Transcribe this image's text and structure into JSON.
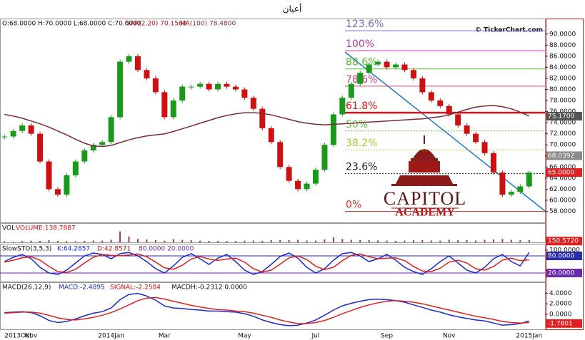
{
  "chart_data": [
    {
      "type": "candlestick",
      "title": "أعيان",
      "legend_text": "O:68.0000 H:70.0000 L:68.0000 C:70.0000",
      "sar_label": "SAR(2,20) 70.1568",
      "watermark": "© TickerChart.com",
      "logo_name": "CAPITOL",
      "logo_sub": "ACADEMY",
      "categories": [
        "2013Oct",
        null,
        null,
        "Nov",
        null,
        null,
        null,
        null,
        null,
        null,
        null,
        null,
        "2014Jan",
        null,
        null,
        null,
        null,
        null,
        "Mar",
        null,
        null,
        null,
        null,
        null,
        null,
        null,
        null,
        "May",
        null,
        null,
        null,
        null,
        null,
        null,
        null,
        "Jul",
        null,
        null,
        null,
        null,
        null,
        null,
        null,
        "Sep",
        null,
        null,
        null,
        null,
        null,
        null,
        "Nov",
        null,
        null,
        null,
        null,
        null,
        null,
        null,
        null,
        "2015Jan"
      ],
      "values": [
        71.5,
        72.5,
        73.5,
        72,
        67,
        62,
        61,
        64.5,
        67,
        69,
        70,
        70.5,
        75,
        85,
        86,
        83.5,
        82,
        79.5,
        75,
        78,
        80.5,
        80.5,
        81,
        80,
        81,
        80.5,
        80,
        78.5,
        76.5,
        73,
        70.5,
        66,
        63.5,
        62,
        63,
        65.5,
        70,
        75.5,
        78.5,
        81,
        83,
        84.5,
        85,
        84,
        84.5,
        83.5,
        82,
        79.5,
        78,
        77,
        75.5,
        73.5,
        72,
        70.5,
        68.5,
        65,
        61,
        61.5,
        62.5,
        65
      ],
      "up_color": "#1a9a1a",
      "down_color": "#d01010",
      "ma": {
        "label": "MA(100) 78.4800",
        "color": "#7a2a3a",
        "values": [
          75.5,
          75.2,
          74.8,
          74.3,
          73.8,
          73.2,
          72.5,
          71.8,
          71,
          70.3,
          69.8,
          69.7,
          69.9,
          70.4,
          70.9,
          71.3,
          71.6,
          71.8,
          72,
          72.4,
          72.9,
          73.4,
          73.9,
          74.4,
          74.9,
          75.3,
          75.6,
          75.8,
          75.8,
          75.7,
          75.4,
          75,
          74.6,
          74.2,
          73.9,
          73.7,
          73.6,
          73.7,
          73.8,
          73.9,
          74,
          74.1,
          74.2,
          74.3,
          74.4,
          74.5,
          74.6,
          74.7,
          74.9,
          75.1,
          75.4,
          75.9,
          76.4,
          76.8,
          77,
          77.1,
          76.9,
          76.5,
          75.9,
          75.2
        ]
      },
      "ylim": [
        56,
        92.8
      ],
      "yticks": [
        {
          "value": 58,
          "label": "58.0000"
        },
        {
          "value": 60,
          "label": "60.0000"
        },
        {
          "value": 62,
          "label": "62.0000"
        },
        {
          "value": 64,
          "label": "64.0000"
        },
        {
          "value": 66,
          "label": "66.0000"
        },
        {
          "value": 68,
          "label": "68.0000"
        },
        {
          "value": 70,
          "label": "70.0000"
        },
        {
          "value": 72,
          "label": "72.0000"
        },
        {
          "value": 74,
          "label": "74.0000"
        },
        {
          "value": 76,
          "label": "76.0000"
        },
        {
          "value": 78,
          "label": "78.0000"
        },
        {
          "value": 80,
          "label": "80.0000"
        },
        {
          "value": 82,
          "label": "82.0000"
        },
        {
          "value": 84,
          "label": "84.0000"
        },
        {
          "value": 86,
          "label": "86.0000"
        },
        {
          "value": 88,
          "label": "88.0000"
        },
        {
          "value": 90,
          "label": "90.0000"
        }
      ],
      "price_tags": [
        {
          "value": 75.17,
          "label": "75.1700",
          "color": "#555555"
        },
        {
          "value": 68.0392,
          "label": "68.0392",
          "color": "#8a8a8a"
        },
        {
          "value": 65,
          "label": "65.0000",
          "color": "#e02020"
        }
      ],
      "fib_levels": [
        {
          "value": 90.6,
          "label": "123.6%",
          "color": "#6a6acf"
        },
        {
          "value": 87,
          "label": "100%",
          "color": "#c030a0"
        },
        {
          "value": 83.7,
          "label": "88.6%",
          "color": "#55bb33"
        },
        {
          "value": 80.6,
          "label": "78.6%",
          "color": "#d04080"
        },
        {
          "value": 75.8,
          "label": "61.8%",
          "color": "#e01010"
        },
        {
          "value": 72.5,
          "label": "50%",
          "color": "#55cc33"
        },
        {
          "value": 69.1,
          "label": "38.2%",
          "color": "#aacc33"
        },
        {
          "value": 64.8,
          "label": "23.6%",
          "color": "#222222"
        },
        {
          "value": 58,
          "label": "0%",
          "color": "#e03030"
        }
      ]
    },
    {
      "type": "bar",
      "name": "VOL",
      "label": "VOLUME:138.7887",
      "color": "#a04040",
      "values": [
        120,
        90,
        150,
        200,
        180,
        250,
        160,
        140,
        130,
        180,
        220,
        200,
        300,
        1300,
        700,
        400,
        350,
        250,
        200,
        380,
        300,
        250,
        200,
        180,
        160,
        150,
        170,
        200,
        220,
        180,
        250,
        280,
        260,
        300,
        220,
        200,
        350,
        600,
        400,
        300,
        280,
        250,
        220,
        200,
        180,
        200,
        240,
        260,
        220,
        200,
        300,
        250,
        280,
        220,
        300,
        350,
        400,
        300,
        250,
        280
      ],
      "ylim": [
        0,
        2200
      ],
      "tag": {
        "value": 150.572,
        "label": "150.5720",
        "color": "#e02020"
      }
    },
    {
      "type": "line",
      "name": "SlowSTO(3,5,3)",
      "levels_label": "80.0000 20.0000",
      "series": [
        {
          "name": "K:64.2857",
          "color": "#1a2ad0",
          "values": [
            60,
            75,
            85,
            70,
            40,
            20,
            15,
            30,
            55,
            80,
            90,
            85,
            70,
            88,
            92,
            80,
            60,
            35,
            20,
            45,
            75,
            88,
            70,
            50,
            72,
            85,
            60,
            30,
            15,
            25,
            50,
            78,
            90,
            72,
            40,
            20,
            35,
            65,
            88,
            92,
            80,
            60,
            70,
            85,
            65,
            40,
            25,
            15,
            35,
            60,
            80,
            55,
            30,
            20,
            40,
            70,
            85,
            60,
            45,
            92
          ]
        },
        {
          "name": "D:42.8571",
          "color": "#e02020",
          "values": [
            58,
            65,
            73,
            77,
            65,
            43,
            25,
            22,
            33,
            55,
            75,
            85,
            82,
            81,
            83,
            87,
            77,
            58,
            38,
            33,
            47,
            69,
            78,
            69,
            64,
            69,
            72,
            58,
            35,
            23,
            30,
            51,
            73,
            80,
            67,
            44,
            32,
            40,
            63,
            82,
            87,
            77,
            70,
            72,
            73,
            63,
            43,
            27,
            25,
            37,
            58,
            65,
            55,
            35,
            30,
            43,
            65,
            72,
            63,
            66
          ]
        }
      ],
      "ylim": [
        -10,
        120
      ],
      "yticks": [
        {
          "value": 100,
          "label": "100.0000"
        }
      ],
      "levels": [
        {
          "value": 80,
          "label": "80.0000",
          "color": "#2a2ab0"
        },
        {
          "value": 20,
          "label": "20.0000",
          "color": "#6a2ab0"
        }
      ]
    },
    {
      "type": "line",
      "name": "MACD(26,12,9)",
      "levels_label": "MACDH:-0.2312 0.0000",
      "series": [
        {
          "name": "MACD:-2.4895",
          "color": "#1a2ad0",
          "values": [
            0.3,
            0.4,
            0.5,
            0.3,
            -0.3,
            -1.2,
            -1.6,
            -1.4,
            -0.9,
            -0.3,
            0.2,
            0.5,
            1.2,
            2.8,
            3.8,
            4.0,
            3.5,
            2.7,
            1.6,
            1.2,
            1.1,
            0.9,
            0.8,
            0.6,
            0.6,
            0.5,
            0.4,
            0.1,
            -0.4,
            -1.1,
            -1.6,
            -2.0,
            -2.2,
            -2.1,
            -1.7,
            -1.1,
            -0.2,
            0.8,
            1.6,
            2.1,
            2.5,
            2.8,
            2.9,
            2.8,
            2.6,
            2.3,
            1.8,
            1.3,
            0.8,
            0.4,
            -0.1,
            -0.5,
            -0.8,
            -1.1,
            -1.3,
            -1.7,
            -2.1,
            -2.0,
            -1.8,
            -1.3
          ]
        },
        {
          "name": "SIGNAL:-2.2584",
          "color": "#e02020",
          "values": [
            0.2,
            0.3,
            0.4,
            0.4,
            0.2,
            -0.2,
            -0.7,
            -1.0,
            -1.1,
            -0.9,
            -0.6,
            -0.2,
            0.3,
            1.0,
            1.8,
            2.6,
            3.1,
            3.2,
            2.9,
            2.5,
            2.1,
            1.7,
            1.4,
            1.1,
            0.9,
            0.8,
            0.6,
            0.5,
            0.2,
            -0.2,
            -0.6,
            -1.1,
            -1.5,
            -1.8,
            -1.8,
            -1.6,
            -1.2,
            -0.6,
            0.1,
            0.7,
            1.3,
            1.8,
            2.2,
            2.5,
            2.6,
            2.5,
            2.3,
            2.0,
            1.6,
            1.2,
            0.8,
            0.4,
            0.0,
            -0.4,
            -0.7,
            -1.0,
            -1.4,
            -1.6,
            -1.7,
            -1.6
          ]
        }
      ],
      "ylim": [
        -2.9,
        6
      ],
      "yticks": [
        {
          "value": 4,
          "label": "4.0000"
        },
        {
          "value": 2,
          "label": "2.0000"
        },
        {
          "value": 0,
          "label": "0.0000"
        }
      ],
      "levels": [
        {
          "value": -1.7801,
          "label": "-1.7801",
          "color": "#e02020"
        }
      ]
    }
  ]
}
